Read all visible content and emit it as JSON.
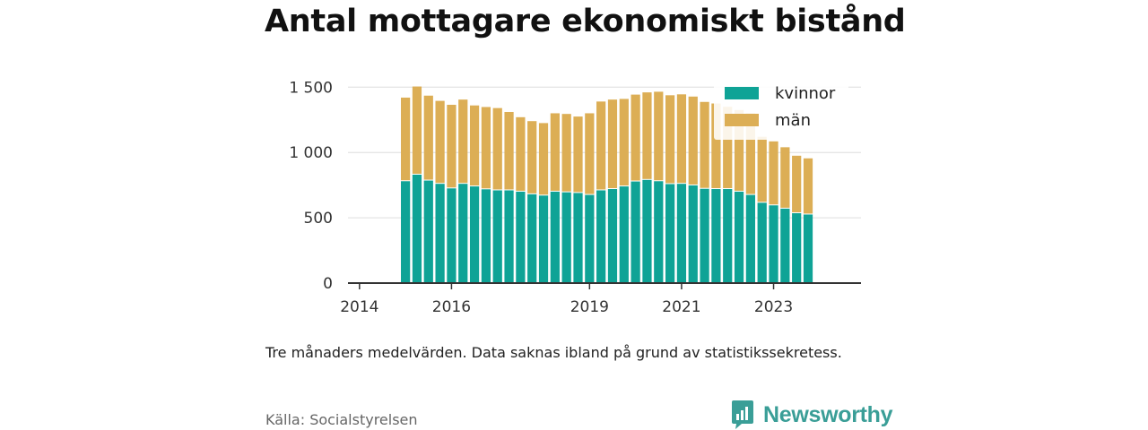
{
  "title": "Antal mottagare ekonomiskt bistånd",
  "note": "Tre månaders medelvärden. Data saknas ibland på grund av statistikssekretess.",
  "source": "Källa: Socialstyrelsen",
  "brand": {
    "name": "Newsworthy",
    "icon": "newsworthy-logo-icon"
  },
  "colors": {
    "kvinnor": "#0fa396",
    "man": "#dcae55",
    "axis": "#333333",
    "grid": "#dddddd"
  },
  "chart_data": {
    "type": "bar",
    "stacked": true,
    "title": "Antal mottagare ekonomiskt bistånd",
    "xlabel": "",
    "ylabel": "",
    "ylim": [
      0,
      1550
    ],
    "yticks": [
      0,
      500,
      1000,
      1500
    ],
    "ytick_labels": [
      "0",
      "500",
      "1 000",
      "1 500"
    ],
    "xlim": [
      2013.75,
      2024.9
    ],
    "xticks": [
      2014,
      2016,
      2019,
      2021,
      2023
    ],
    "xtick_labels": [
      "2014",
      "2016",
      "2019",
      "2021",
      "2023"
    ],
    "x": [
      2015.0,
      2015.25,
      2015.5,
      2015.75,
      2016.0,
      2016.25,
      2016.5,
      2016.75,
      2017.0,
      2017.25,
      2017.5,
      2017.75,
      2018.0,
      2018.25,
      2018.5,
      2018.75,
      2019.0,
      2019.25,
      2019.5,
      2019.75,
      2020.0,
      2020.25,
      2020.5,
      2020.75,
      2021.0,
      2021.25,
      2021.5,
      2021.75,
      2022.0,
      2022.25,
      2022.5,
      2022.75,
      2023.0,
      2023.25,
      2023.5,
      2023.75
    ],
    "legend_position": "top-right",
    "grid": true,
    "series": [
      {
        "name": "kvinnor",
        "values": [
          780,
          830,
          785,
          760,
          725,
          760,
          740,
          718,
          710,
          710,
          700,
          680,
          670,
          700,
          695,
          690,
          675,
          710,
          720,
          740,
          778,
          790,
          780,
          758,
          760,
          748,
          722,
          720,
          720,
          700,
          675,
          615,
          595,
          570,
          535,
          525
        ]
      },
      {
        "name": "män",
        "values": [
          640,
          675,
          650,
          635,
          640,
          645,
          620,
          630,
          630,
          600,
          570,
          560,
          555,
          600,
          600,
          585,
          625,
          680,
          685,
          670,
          665,
          670,
          685,
          680,
          685,
          680,
          665,
          655,
          630,
          625,
          625,
          505,
          490,
          470,
          440,
          430
        ]
      }
    ]
  }
}
